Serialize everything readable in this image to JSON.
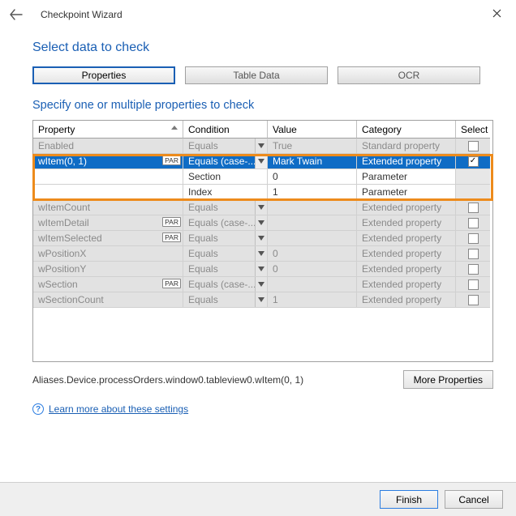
{
  "window": {
    "title": "Checkpoint Wizard"
  },
  "heading1": "Select data to check",
  "tabs": {
    "properties": "Properties",
    "table_data": "Table Data",
    "ocr": "OCR"
  },
  "heading2": "Specify one or multiple properties to check",
  "grid": {
    "columns": {
      "property": "Property",
      "condition": "Condition",
      "value": "Value",
      "category": "Category",
      "select": "Select"
    },
    "rows": [
      {
        "property": "Enabled",
        "par": false,
        "condition": "Equals",
        "cond_dd": true,
        "value": "True",
        "category": "Standard property",
        "selected": false,
        "style": "disabled"
      },
      {
        "property": "wItem(0, 1)",
        "par": true,
        "condition": "Equals (case-...",
        "cond_dd": true,
        "value": "Mark Twain",
        "category": "Extended property",
        "selected": true,
        "style": "highlight"
      },
      {
        "property": "",
        "par": false,
        "condition": "Section",
        "cond_dd": false,
        "value": "0",
        "category": "Parameter",
        "selected": null,
        "style": "sub"
      },
      {
        "property": "",
        "par": false,
        "condition": "Index",
        "cond_dd": false,
        "value": "1",
        "category": "Parameter",
        "selected": null,
        "style": "sub"
      },
      {
        "property": "wItemCount",
        "par": false,
        "condition": "Equals",
        "cond_dd": true,
        "value": "",
        "category": "Extended property",
        "selected": false,
        "style": "disabled"
      },
      {
        "property": "wItemDetail",
        "par": true,
        "condition": "Equals (case-...",
        "cond_dd": true,
        "value": "",
        "category": "Extended property",
        "selected": false,
        "style": "disabled"
      },
      {
        "property": "wItemSelected",
        "par": true,
        "condition": "Equals",
        "cond_dd": true,
        "value": "",
        "category": "Extended property",
        "selected": false,
        "style": "disabled"
      },
      {
        "property": "wPositionX",
        "par": false,
        "condition": "Equals",
        "cond_dd": true,
        "value": "0",
        "category": "Extended property",
        "selected": false,
        "style": "disabled"
      },
      {
        "property": "wPositionY",
        "par": false,
        "condition": "Equals",
        "cond_dd": true,
        "value": "0",
        "category": "Extended property",
        "selected": false,
        "style": "disabled"
      },
      {
        "property": "wSection",
        "par": true,
        "condition": "Equals (case-...",
        "cond_dd": true,
        "value": "",
        "category": "Extended property",
        "selected": false,
        "style": "disabled"
      },
      {
        "property": "wSectionCount",
        "par": false,
        "condition": "Equals",
        "cond_dd": true,
        "value": "1",
        "category": "Extended property",
        "selected": false,
        "style": "disabled"
      }
    ],
    "par_label": "PAR"
  },
  "path": "Aliases.Device.processOrders.window0.tableview0.wItem(0, 1)",
  "buttons": {
    "more_props": "More Properties",
    "finish": "Finish",
    "cancel": "Cancel"
  },
  "link": "Learn more about these settings",
  "colors": {
    "accent": "#1a5fb4",
    "highlight_bg": "#0f6cc5",
    "selection_border": "#ed8b1c",
    "disabled_text": "#8a8a8a",
    "disabled_bg": "#e2e2e2"
  }
}
